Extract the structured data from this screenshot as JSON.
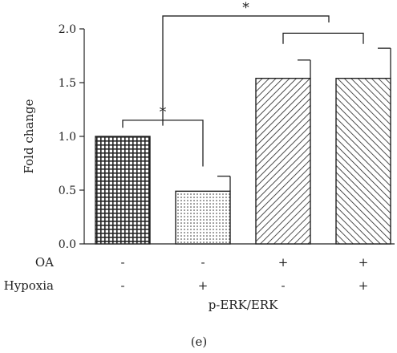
{
  "chart_data": {
    "type": "bar",
    "ylabel": "Fold change",
    "xlabel": "p-ERK/ERK",
    "panel_label": "(e)",
    "ylim": [
      0,
      2.0
    ],
    "yticks": [
      "0.0",
      "0.5",
      "1.0",
      "1.5",
      "2.0"
    ],
    "bars": [
      {
        "value": 1.0,
        "error": 0.0,
        "pattern": "grid"
      },
      {
        "value": 0.49,
        "error": 0.14,
        "pattern": "dots"
      },
      {
        "value": 1.54,
        "error": 0.17,
        "pattern": "diag-right"
      },
      {
        "value": 1.54,
        "error": 0.28,
        "pattern": "diag-left"
      }
    ],
    "conditions": [
      {
        "name": "OA",
        "signs": [
          "-",
          "-",
          "+",
          "+"
        ]
      },
      {
        "name": "Hypoxia",
        "signs": [
          "-",
          "+",
          "-",
          "+"
        ]
      }
    ],
    "significance": [
      {
        "from": 0,
        "to": 1,
        "label": "*"
      },
      {
        "from": 0,
        "to": [
          2,
          3
        ],
        "label": "*"
      }
    ]
  }
}
